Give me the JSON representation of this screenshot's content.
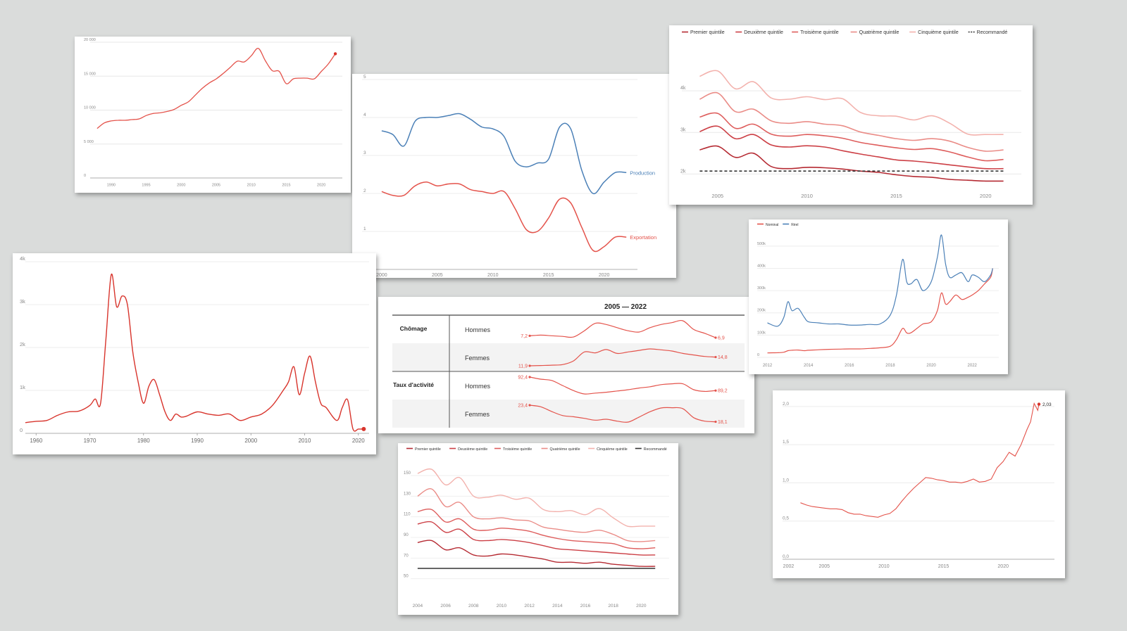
{
  "chart_data": [
    {
      "id": "c1",
      "type": "line",
      "color": "#e4534b",
      "x": [
        1988,
        1989,
        1990,
        1991,
        1992,
        1993,
        1994,
        1995,
        1996,
        1997,
        1998,
        1999,
        2000,
        2001,
        2002,
        2003,
        2004,
        2005,
        2006,
        2007,
        2008,
        2009,
        2010,
        2011,
        2012,
        2013,
        2014,
        2015,
        2016,
        2017,
        2018,
        2019,
        2020,
        2021,
        2022
      ],
      "values": [
        7300,
        8100,
        8400,
        8500,
        8500,
        8600,
        8700,
        9200,
        9500,
        9600,
        9800,
        10100,
        10700,
        11200,
        12200,
        13200,
        14000,
        14600,
        15400,
        16300,
        17200,
        17100,
        18000,
        19100,
        17300,
        15800,
        15700,
        13900,
        14600,
        14700,
        14700,
        14600,
        15700,
        16800,
        18300
      ],
      "xticks": [
        "1990",
        "1995",
        "2000",
        "2005",
        "2010",
        "2015",
        "2020"
      ],
      "yticks": [
        "0",
        "5 000",
        "10 000",
        "15 000",
        "20 000"
      ],
      "xlim": [
        1987,
        2023
      ],
      "ylim": [
        0,
        20000
      ]
    },
    {
      "id": "c2",
      "type": "line",
      "x": [
        2000,
        2001,
        2002,
        2003,
        2004,
        2005,
        2006,
        2007,
        2008,
        2009,
        2010,
        2011,
        2012,
        2013,
        2014,
        2015,
        2016,
        2017,
        2018,
        2019,
        2020,
        2021,
        2022
      ],
      "series": [
        {
          "name": "Production",
          "color": "#4b80b7",
          "values": [
            3.65,
            3.55,
            3.25,
            3.9,
            4.0,
            4.0,
            4.05,
            4.1,
            3.95,
            3.75,
            3.7,
            3.5,
            2.85,
            2.7,
            2.8,
            2.9,
            3.75,
            3.7,
            2.6,
            2.0,
            2.3,
            2.55,
            2.55
          ]
        },
        {
          "name": "Exportation",
          "color": "#e4534b",
          "values": [
            2.05,
            1.95,
            1.95,
            2.2,
            2.3,
            2.2,
            2.25,
            2.25,
            2.1,
            2.05,
            2.0,
            2.05,
            1.6,
            1.05,
            1.0,
            1.35,
            1.85,
            1.75,
            1.1,
            0.5,
            0.6,
            0.85,
            0.85
          ]
        }
      ],
      "xticks": [
        "2000",
        "2005",
        "2010",
        "2015",
        "2020"
      ],
      "yticks": [
        "1",
        "2",
        "3",
        "4",
        "5"
      ],
      "xlim": [
        1999.5,
        2023
      ],
      "ylim": [
        0,
        5
      ]
    },
    {
      "id": "c3",
      "type": "line",
      "legend": [
        "Premier quintile",
        "Deuxième quintile",
        "Troisième quintile",
        "Quatrième quintile",
        "Cinquième quintile",
        "Recommandé"
      ],
      "x": [
        2004,
        2005,
        2006,
        2007,
        2008,
        2009,
        2010,
        2011,
        2012,
        2013,
        2014,
        2015,
        2016,
        2017,
        2018,
        2019,
        2020,
        2021
      ],
      "series": [
        {
          "name": "Premier quintile",
          "color": "#b52a32",
          "values": [
            2580,
            2670,
            2400,
            2500,
            2180,
            2130,
            2160,
            2150,
            2120,
            2070,
            2040,
            1980,
            1940,
            1920,
            1870,
            1850,
            1830,
            1830
          ]
        },
        {
          "name": "Deuxième quintile",
          "color": "#cc3f45",
          "values": [
            3020,
            3150,
            2850,
            2950,
            2700,
            2650,
            2680,
            2650,
            2560,
            2480,
            2410,
            2340,
            2310,
            2270,
            2220,
            2170,
            2130,
            2130
          ]
        },
        {
          "name": "Troisième quintile",
          "color": "#de5d5c",
          "values": [
            3370,
            3460,
            3100,
            3200,
            2960,
            2910,
            2950,
            2920,
            2860,
            2760,
            2690,
            2630,
            2590,
            2610,
            2530,
            2410,
            2320,
            2350
          ]
        },
        {
          "name": "Quatrième quintile",
          "color": "#ea8c87",
          "values": [
            3800,
            3950,
            3500,
            3560,
            3280,
            3220,
            3260,
            3200,
            3160,
            3010,
            2930,
            2850,
            2810,
            2850,
            2790,
            2640,
            2550,
            2580
          ]
        },
        {
          "name": "Cinquième quintile",
          "color": "#f3b2ad",
          "values": [
            4350,
            4480,
            4050,
            4220,
            3830,
            3800,
            3860,
            3790,
            3810,
            3480,
            3400,
            3390,
            3300,
            3400,
            3220,
            2960,
            2950,
            2950
          ]
        },
        {
          "name": "Recommandé",
          "color": "#333333",
          "dash": true,
          "values": [
            2070,
            2070,
            2070,
            2070,
            2070,
            2070,
            2070,
            2070,
            2070,
            2070,
            2070,
            2070,
            2070,
            2070,
            2070,
            2070,
            2070,
            2070
          ]
        }
      ],
      "xticks": [
        "2005",
        "2010",
        "2015",
        "2020"
      ],
      "yticks": [
        "2k",
        "3k",
        "4k"
      ],
      "xlim": [
        2003,
        2022
      ],
      "ylim": [
        1600,
        4900
      ]
    },
    {
      "id": "c4",
      "type": "line",
      "color": "#d8342c",
      "x": [
        1958,
        1960,
        1962,
        1964,
        1966,
        1968,
        1970,
        1971,
        1972,
        1973,
        1974,
        1975,
        1976,
        1977,
        1978,
        1979,
        1980,
        1981,
        1982,
        1983,
        1984,
        1985,
        1986,
        1987,
        1988,
        1990,
        1992,
        1994,
        1996,
        1998,
        2000,
        2002,
        2004,
        2006,
        2007,
        2008,
        2009,
        2010,
        2011,
        2012,
        2013,
        2014,
        2016,
        2017,
        2018,
        2019,
        2020,
        2021
      ],
      "values": [
        250,
        280,
        300,
        420,
        500,
        520,
        650,
        800,
        700,
        2200,
        3700,
        2950,
        3200,
        3000,
        1900,
        1200,
        700,
        1100,
        1250,
        900,
        500,
        300,
        450,
        380,
        400,
        500,
        450,
        420,
        450,
        300,
        380,
        450,
        650,
        1000,
        1200,
        1550,
        900,
        1400,
        1800,
        1200,
        700,
        600,
        300,
        600,
        780,
        100,
        100,
        100
      ],
      "xticks": [
        "1960",
        "1970",
        "1980",
        "1990",
        "2000",
        "2010",
        "2020"
      ],
      "yticks": [
        "0",
        "1k",
        "2k",
        "3k",
        "4k"
      ],
      "xlim": [
        1958,
        2022
      ],
      "ylim": [
        0,
        4000
      ]
    },
    {
      "id": "c5",
      "type": "table",
      "title": "2005 — 2022",
      "groups": [
        {
          "label": "Chômage",
          "rows": [
            {
              "label": "Hommes",
              "start": "7,2",
              "end": "6,9",
              "values": [
                7.2,
                7.3,
                7.2,
                7.1,
                7.0,
                8.0,
                9.2,
                9.0,
                8.5,
                8.0,
                7.8,
                8.5,
                9.0,
                9.3,
                9.6,
                8.2,
                7.6,
                6.9
              ]
            },
            {
              "label": "Femmes",
              "start": "11,9",
              "end": "14,8",
              "values": [
                11.9,
                12.0,
                12.1,
                12.3,
                13.5,
                16.5,
                16.2,
                17.3,
                16.0,
                16.5,
                17.0,
                17.5,
                17.2,
                16.8,
                16.0,
                15.5,
                15.0,
                14.8
              ]
            }
          ]
        },
        {
          "label": "Taux d'activité",
          "rows": [
            {
              "label": "Hommes",
              "start": "92,4",
              "end": "89,2",
              "values": [
                92.4,
                91.9,
                91.6,
                90.4,
                89.2,
                88.4,
                88.6,
                88.8,
                89.1,
                89.4,
                89.8,
                90.1,
                90.6,
                90.8,
                90.8,
                89.4,
                89.0,
                89.2
              ]
            },
            {
              "label": "Femmes",
              "start": "23,4",
              "end": "18,1",
              "values": [
                23.4,
                22.9,
                21.4,
                20.1,
                19.7,
                19.2,
                18.6,
                18.9,
                18.3,
                18.0,
                19.6,
                21.3,
                22.5,
                22.6,
                22.3,
                19.4,
                18.3,
                18.1
              ]
            }
          ]
        }
      ]
    },
    {
      "id": "c6",
      "type": "line",
      "legend": [
        "Premier quintile",
        "Deuxième quintile",
        "Troisième quintile",
        "Quatrième quintile",
        "Cinquième quintile",
        "Recommandé"
      ],
      "x": [
        2004,
        2005,
        2006,
        2007,
        2008,
        2009,
        2010,
        2011,
        2012,
        2013,
        2014,
        2015,
        2016,
        2017,
        2018,
        2019,
        2020,
        2021
      ],
      "series": [
        {
          "name": "Premier quintile",
          "color": "#b52a32",
          "values": [
            85,
            87,
            78,
            80,
            73,
            72,
            74,
            73,
            71,
            69,
            66,
            66,
            65,
            66,
            64,
            63,
            62,
            62
          ]
        },
        {
          "name": "Deuxième quintile",
          "color": "#cc3f45",
          "values": [
            103,
            105,
            95,
            98,
            88,
            87,
            88,
            87,
            85,
            82,
            79,
            78,
            77,
            76,
            75,
            74,
            73,
            73
          ]
        },
        {
          "name": "Troisième quintile",
          "color": "#de5d5c",
          "values": [
            115,
            117,
            105,
            108,
            98,
            97,
            99,
            98,
            96,
            92,
            89,
            87,
            86,
            85,
            84,
            80,
            79,
            80
          ]
        },
        {
          "name": "Quatrième quintile",
          "color": "#ea8c87",
          "values": [
            130,
            137,
            120,
            124,
            110,
            108,
            109,
            107,
            106,
            100,
            98,
            96,
            95,
            97,
            93,
            87,
            86,
            87
          ]
        },
        {
          "name": "Cinquième quintile",
          "color": "#f3b2ad",
          "values": [
            152,
            156,
            141,
            148,
            130,
            129,
            131,
            127,
            128,
            117,
            115,
            116,
            112,
            118,
            109,
            101,
            101,
            101
          ]
        },
        {
          "name": "Recommandé",
          "color": "#333333",
          "values": [
            60,
            60,
            60,
            60,
            60,
            60,
            60,
            60,
            60,
            60,
            60,
            60,
            60,
            60,
            60,
            60,
            60,
            60
          ]
        }
      ],
      "xticks": [
        "2004",
        "2006",
        "2008",
        "2010",
        "2012",
        "2014",
        "2016",
        "2018",
        "2020"
      ],
      "yticks": [
        "50",
        "70",
        "90",
        "110",
        "130",
        "150"
      ],
      "xlim": [
        2003.5,
        2022
      ],
      "ylim": [
        45,
        165
      ]
    },
    {
      "id": "c7",
      "type": "line",
      "legend": [
        "Nominal",
        "Réel"
      ],
      "x": [
        2012.0,
        2012.5,
        2012.8,
        2013.0,
        2013.2,
        2013.5,
        2013.8,
        2014.0,
        2014.5,
        2015.0,
        2015.5,
        2016.0,
        2016.5,
        2017.0,
        2017.5,
        2018.0,
        2018.3,
        2018.6,
        2018.8,
        2019.0,
        2019.3,
        2019.6,
        2020.0,
        2020.3,
        2020.5,
        2020.7,
        2020.9,
        2021.2,
        2021.5,
        2021.8,
        2022.0,
        2022.3,
        2022.6,
        2022.9,
        2023.0
      ],
      "series": [
        {
          "name": "Nominal",
          "color": "#e4534b",
          "values": [
            20000,
            21000,
            23000,
            30000,
            32000,
            33000,
            30000,
            32000,
            34000,
            36000,
            37000,
            38000,
            38000,
            40000,
            43000,
            50000,
            80000,
            130000,
            110000,
            110000,
            130000,
            150000,
            160000,
            210000,
            290000,
            240000,
            250000,
            280000,
            260000,
            270000,
            280000,
            300000,
            330000,
            360000,
            400000
          ]
        },
        {
          "name": "Réel",
          "color": "#4b80b7",
          "values": [
            155000,
            140000,
            180000,
            250000,
            210000,
            220000,
            180000,
            160000,
            155000,
            150000,
            150000,
            145000,
            145000,
            148000,
            150000,
            190000,
            280000,
            440000,
            340000,
            330000,
            350000,
            300000,
            340000,
            450000,
            550000,
            420000,
            360000,
            370000,
            380000,
            340000,
            370000,
            360000,
            340000,
            370000,
            400000
          ]
        }
      ],
      "xticks": [
        "2012",
        "2014",
        "2016",
        "2018",
        "2020",
        "2022"
      ],
      "yticks": [
        "0",
        "100k",
        "200k",
        "300k",
        "400k",
        "500k"
      ],
      "xlim": [
        2011.5,
        2023.3
      ],
      "ylim": [
        0,
        550000
      ]
    },
    {
      "id": "c8",
      "type": "line",
      "color": "#e4534b",
      "end_label": "2,03",
      "x": [
        2003.0,
        2003.5,
        2004.0,
        2004.5,
        2005.0,
        2005.5,
        2006.0,
        2006.5,
        2007.0,
        2007.5,
        2008.0,
        2008.5,
        2009.0,
        2009.5,
        2010.0,
        2010.5,
        2011.0,
        2011.5,
        2012.0,
        2012.5,
        2013.0,
        2013.5,
        2014.0,
        2014.5,
        2015.0,
        2015.5,
        2016.0,
        2016.5,
        2017.0,
        2017.5,
        2018.0,
        2018.5,
        2019.0,
        2019.5,
        2020.0,
        2020.5,
        2021.0,
        2021.5,
        2022.0,
        2022.3,
        2022.6,
        2022.9,
        2023.0
      ],
      "values": [
        0.74,
        0.71,
        0.69,
        0.68,
        0.67,
        0.66,
        0.66,
        0.65,
        0.61,
        0.59,
        0.59,
        0.57,
        0.56,
        0.55,
        0.58,
        0.6,
        0.66,
        0.76,
        0.85,
        0.93,
        1.0,
        1.07,
        1.06,
        1.04,
        1.03,
        1.01,
        1.01,
        1.0,
        1.02,
        1.05,
        1.01,
        1.02,
        1.05,
        1.2,
        1.28,
        1.4,
        1.35,
        1.5,
        1.7,
        1.8,
        2.04,
        1.95,
        2.03
      ],
      "xticks": [
        "2002",
        "2005",
        "2010",
        "2015",
        "2020"
      ],
      "yticks": [
        "0,0",
        "0,5",
        "1,0",
        "1,5",
        "2,0"
      ],
      "xlim": [
        2001.5,
        2024.3
      ],
      "ylim": [
        0,
        2.1
      ]
    }
  ]
}
